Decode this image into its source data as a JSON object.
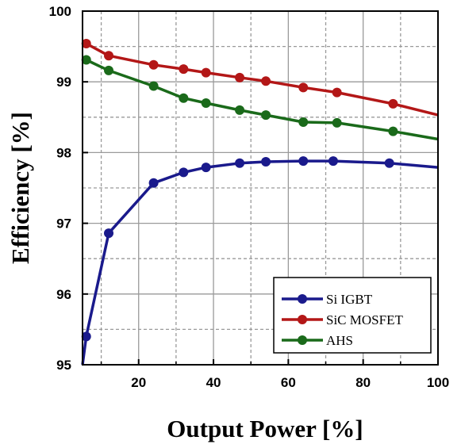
{
  "chart_data": {
    "type": "line",
    "xlabel": "Output Power [%]",
    "ylabel": "Efficiency [%]",
    "xlim": [
      5,
      100
    ],
    "ylim": [
      95,
      100
    ],
    "xticks": [
      20,
      40,
      60,
      80,
      100
    ],
    "yticks": [
      95,
      96,
      97,
      98,
      99,
      100
    ],
    "grid": true,
    "legend": "bottom-right",
    "series": [
      {
        "name": "Si IGBT",
        "color": "#1a1a8c",
        "x": [
          5,
          6,
          12,
          24,
          32,
          38,
          47,
          54,
          64,
          72,
          87,
          100
        ],
        "y": [
          95.0,
          95.4,
          96.86,
          97.57,
          97.72,
          97.79,
          97.85,
          97.87,
          97.88,
          97.88,
          97.85,
          97.79
        ],
        "markers": [
          false,
          true,
          true,
          true,
          true,
          true,
          true,
          true,
          true,
          true,
          true,
          false
        ]
      },
      {
        "name": "SiC MOSFET",
        "color": "#b31717",
        "x": [
          6,
          12,
          24,
          32,
          38,
          47,
          54,
          64,
          73,
          88,
          100
        ],
        "y": [
          99.54,
          99.37,
          99.24,
          99.18,
          99.13,
          99.06,
          99.01,
          98.92,
          98.85,
          98.69,
          98.53
        ],
        "markers": [
          true,
          true,
          true,
          true,
          true,
          true,
          true,
          true,
          true,
          true,
          false
        ]
      },
      {
        "name": "AHS",
        "color": "#1a6a1a",
        "x": [
          6,
          12,
          24,
          32,
          38,
          47,
          54,
          64,
          73,
          88,
          100
        ],
        "y": [
          99.31,
          99.16,
          98.94,
          98.77,
          98.7,
          98.6,
          98.53,
          98.43,
          98.42,
          98.3,
          98.19
        ],
        "markers": [
          true,
          true,
          true,
          true,
          true,
          true,
          true,
          true,
          true,
          true,
          false
        ]
      }
    ]
  }
}
